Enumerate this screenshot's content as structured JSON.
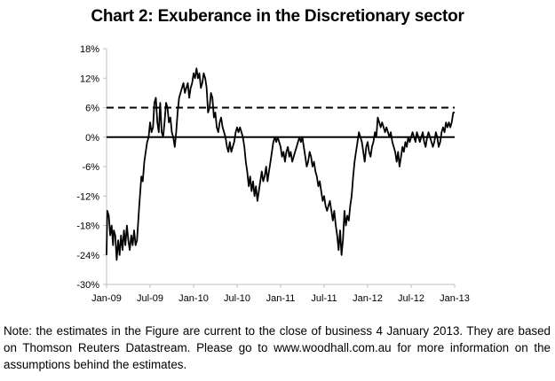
{
  "chart_data": {
    "type": "line",
    "title": "Chart 2: Exuberance in the Discretionary sector",
    "xlabel": "",
    "ylabel": "",
    "ylim": [
      -30,
      18
    ],
    "yticks": [
      "18%",
      "12%",
      "6%",
      "0%",
      "-6%",
      "-12%",
      "-18%",
      "-24%",
      "-30%"
    ],
    "ytick_values": [
      18,
      12,
      6,
      0,
      -6,
      -12,
      -18,
      -24,
      -30
    ],
    "xticks": [
      "Jan-09",
      "Jul-09",
      "Jan-10",
      "Jul-10",
      "Jan-11",
      "Jul-11",
      "Jan-12",
      "Jul-12",
      "Jan-13"
    ],
    "xtick_months": [
      0,
      6,
      12,
      18,
      24,
      30,
      36,
      42,
      48
    ],
    "x_unit": "months since Jan-2009",
    "grid": false,
    "legend": "none",
    "reference_lines": [
      {
        "name": "zero line",
        "value": 0,
        "style": "solid"
      },
      {
        "name": "threshold",
        "value": 6,
        "style": "dashed"
      }
    ],
    "series": [
      {
        "name": "Exuberance",
        "points": [
          [
            0.0,
            -24
          ],
          [
            0.1,
            -15
          ],
          [
            0.3,
            -16
          ],
          [
            0.5,
            -20
          ],
          [
            0.7,
            -18
          ],
          [
            0.9,
            -22
          ],
          [
            1.0,
            -19
          ],
          [
            1.2,
            -20
          ],
          [
            1.4,
            -25
          ],
          [
            1.6,
            -21
          ],
          [
            1.8,
            -24
          ],
          [
            2.0,
            -20
          ],
          [
            2.2,
            -23
          ],
          [
            2.4,
            -19
          ],
          [
            2.6,
            -22
          ],
          [
            2.8,
            -18
          ],
          [
            3.0,
            -21
          ],
          [
            3.2,
            -23
          ],
          [
            3.4,
            -20
          ],
          [
            3.6,
            -22
          ],
          [
            3.8,
            -19
          ],
          [
            4.0,
            -22
          ],
          [
            4.2,
            -21
          ],
          [
            4.5,
            -14
          ],
          [
            4.8,
            -8
          ],
          [
            5.0,
            -9
          ],
          [
            5.2,
            -5
          ],
          [
            5.4,
            -3
          ],
          [
            5.6,
            -1
          ],
          [
            5.8,
            0
          ],
          [
            6.0,
            3
          ],
          [
            6.2,
            1
          ],
          [
            6.4,
            2
          ],
          [
            6.6,
            7
          ],
          [
            6.8,
            8
          ],
          [
            7.0,
            3
          ],
          [
            7.2,
            1
          ],
          [
            7.4,
            7
          ],
          [
            7.6,
            1
          ],
          [
            7.8,
            0
          ],
          [
            8.0,
            3
          ],
          [
            8.2,
            7
          ],
          [
            8.4,
            6
          ],
          [
            8.6,
            3
          ],
          [
            8.8,
            4
          ],
          [
            9.0,
            1
          ],
          [
            9.2,
            0
          ],
          [
            9.4,
            -2
          ],
          [
            9.6,
            1
          ],
          [
            9.8,
            5
          ],
          [
            10.0,
            8
          ],
          [
            10.2,
            9
          ],
          [
            10.4,
            10
          ],
          [
            10.6,
            11
          ],
          [
            10.8,
            9
          ],
          [
            11.0,
            10
          ],
          [
            11.2,
            11
          ],
          [
            11.4,
            8
          ],
          [
            11.6,
            10
          ],
          [
            11.8,
            11
          ],
          [
            12.0,
            13
          ],
          [
            12.2,
            12
          ],
          [
            12.4,
            14
          ],
          [
            12.6,
            12
          ],
          [
            12.8,
            13
          ],
          [
            13.0,
            10
          ],
          [
            13.2,
            11
          ],
          [
            13.4,
            13
          ],
          [
            13.6,
            12
          ],
          [
            13.8,
            10
          ],
          [
            14.0,
            5
          ],
          [
            14.2,
            6
          ],
          [
            14.4,
            9
          ],
          [
            14.6,
            8
          ],
          [
            14.8,
            4
          ],
          [
            15.0,
            5
          ],
          [
            15.2,
            2
          ],
          [
            15.4,
            1
          ],
          [
            15.6,
            3
          ],
          [
            15.8,
            4
          ],
          [
            16.0,
            2
          ],
          [
            16.2,
            1
          ],
          [
            16.4,
            0
          ],
          [
            16.6,
            -2
          ],
          [
            16.8,
            -3
          ],
          [
            17.0,
            -1
          ],
          [
            17.2,
            -3
          ],
          [
            17.4,
            -2
          ],
          [
            17.6,
            -1
          ],
          [
            17.8,
            1
          ],
          [
            18.0,
            2
          ],
          [
            18.2,
            1
          ],
          [
            18.4,
            2
          ],
          [
            18.6,
            1
          ],
          [
            18.8,
            0
          ],
          [
            19.0,
            -2
          ],
          [
            19.2,
            -5
          ],
          [
            19.4,
            -7
          ],
          [
            19.6,
            -10
          ],
          [
            19.8,
            -8
          ],
          [
            20.0,
            -11
          ],
          [
            20.2,
            -9
          ],
          [
            20.4,
            -12
          ],
          [
            20.6,
            -10
          ],
          [
            20.8,
            -13
          ],
          [
            21.0,
            -11
          ],
          [
            21.2,
            -9
          ],
          [
            21.4,
            -7
          ],
          [
            21.6,
            -9
          ],
          [
            21.8,
            -8
          ],
          [
            22.0,
            -6
          ],
          [
            22.2,
            -9
          ],
          [
            22.4,
            -7
          ],
          [
            22.6,
            -5
          ],
          [
            22.8,
            -3
          ],
          [
            23.0,
            -1
          ],
          [
            23.2,
            0
          ],
          [
            23.4,
            -1
          ],
          [
            23.6,
            0
          ],
          [
            23.8,
            -1
          ],
          [
            24.0,
            -2
          ],
          [
            24.2,
            -4
          ],
          [
            24.4,
            -3
          ],
          [
            24.6,
            -5
          ],
          [
            24.8,
            -3
          ],
          [
            25.0,
            -2
          ],
          [
            25.2,
            -4
          ],
          [
            25.4,
            -3
          ],
          [
            25.6,
            -5
          ],
          [
            25.8,
            -4
          ],
          [
            26.0,
            -3
          ],
          [
            26.2,
            -2
          ],
          [
            26.4,
            -1
          ],
          [
            26.6,
            0
          ],
          [
            26.8,
            -1
          ],
          [
            27.0,
            0
          ],
          [
            27.2,
            -2
          ],
          [
            27.4,
            -4
          ],
          [
            27.6,
            -6
          ],
          [
            27.8,
            -5
          ],
          [
            28.0,
            -3
          ],
          [
            28.2,
            -4
          ],
          [
            28.4,
            -6
          ],
          [
            28.6,
            -5
          ],
          [
            28.8,
            -7
          ],
          [
            29.0,
            -8
          ],
          [
            29.2,
            -10
          ],
          [
            29.4,
            -9
          ],
          [
            29.6,
            -11
          ],
          [
            29.8,
            -13
          ],
          [
            30.0,
            -12
          ],
          [
            30.2,
            -14
          ],
          [
            30.4,
            -15
          ],
          [
            30.6,
            -14
          ],
          [
            30.8,
            -13
          ],
          [
            31.0,
            -15
          ],
          [
            31.2,
            -17
          ],
          [
            31.4,
            -15
          ],
          [
            31.6,
            -18
          ],
          [
            31.8,
            -20
          ],
          [
            32.0,
            -23
          ],
          [
            32.2,
            -19
          ],
          [
            32.4,
            -24
          ],
          [
            32.6,
            -21
          ],
          [
            32.8,
            -15
          ],
          [
            33.0,
            -18
          ],
          [
            33.2,
            -16
          ],
          [
            33.4,
            -17
          ],
          [
            33.6,
            -14
          ],
          [
            33.8,
            -12
          ],
          [
            34.0,
            -8
          ],
          [
            34.2,
            -5
          ],
          [
            34.4,
            -3
          ],
          [
            34.6,
            -1
          ],
          [
            34.8,
            1
          ],
          [
            35.0,
            0
          ],
          [
            35.2,
            -1
          ],
          [
            35.4,
            -3
          ],
          [
            35.6,
            -5
          ],
          [
            35.8,
            -2
          ],
          [
            36.0,
            -1
          ],
          [
            36.2,
            -3
          ],
          [
            36.4,
            -4
          ],
          [
            36.6,
            -2
          ],
          [
            36.8,
            -1
          ],
          [
            37.0,
            1
          ],
          [
            37.2,
            0
          ],
          [
            37.4,
            4
          ],
          [
            37.6,
            3
          ],
          [
            37.8,
            2
          ],
          [
            38.0,
            3
          ],
          [
            38.2,
            2
          ],
          [
            38.4,
            1
          ],
          [
            38.6,
            2
          ],
          [
            38.8,
            1
          ],
          [
            39.0,
            0
          ],
          [
            39.2,
            1
          ],
          [
            39.4,
            -1
          ],
          [
            39.6,
            -2
          ],
          [
            39.8,
            -3
          ],
          [
            40.0,
            -5
          ],
          [
            40.2,
            -3
          ],
          [
            40.4,
            -6
          ],
          [
            40.6,
            -4
          ],
          [
            40.8,
            -2
          ],
          [
            41.0,
            -3
          ],
          [
            41.2,
            -1
          ],
          [
            41.4,
            -2
          ],
          [
            41.6,
            0
          ],
          [
            41.8,
            -1
          ],
          [
            42.0,
            0
          ],
          [
            42.2,
            1
          ],
          [
            42.4,
            0
          ],
          [
            42.6,
            -1
          ],
          [
            42.8,
            1
          ],
          [
            43.0,
            0
          ],
          [
            43.2,
            -1
          ],
          [
            43.4,
            0
          ],
          [
            43.6,
            1
          ],
          [
            43.8,
            -1
          ],
          [
            44.0,
            -2
          ],
          [
            44.2,
            0
          ],
          [
            44.4,
            1
          ],
          [
            44.6,
            0
          ],
          [
            44.8,
            -1
          ],
          [
            45.0,
            -2
          ],
          [
            45.2,
            -1
          ],
          [
            45.4,
            1
          ],
          [
            45.6,
            0
          ],
          [
            45.8,
            -2
          ],
          [
            46.0,
            -1
          ],
          [
            46.2,
            1
          ],
          [
            46.4,
            2
          ],
          [
            46.6,
            1
          ],
          [
            46.8,
            3
          ],
          [
            47.0,
            2
          ],
          [
            47.2,
            3
          ],
          [
            47.4,
            2
          ],
          [
            47.6,
            3
          ],
          [
            47.8,
            5
          ],
          [
            48.0,
            5
          ]
        ]
      }
    ]
  },
  "note": "Note: the estimates in the Figure are current to the close of business 4 January 2013. They are based on Thomson Reuters Datastream. Please go to www.woodhall.com.au for more information on the assumptions behind the estimates."
}
